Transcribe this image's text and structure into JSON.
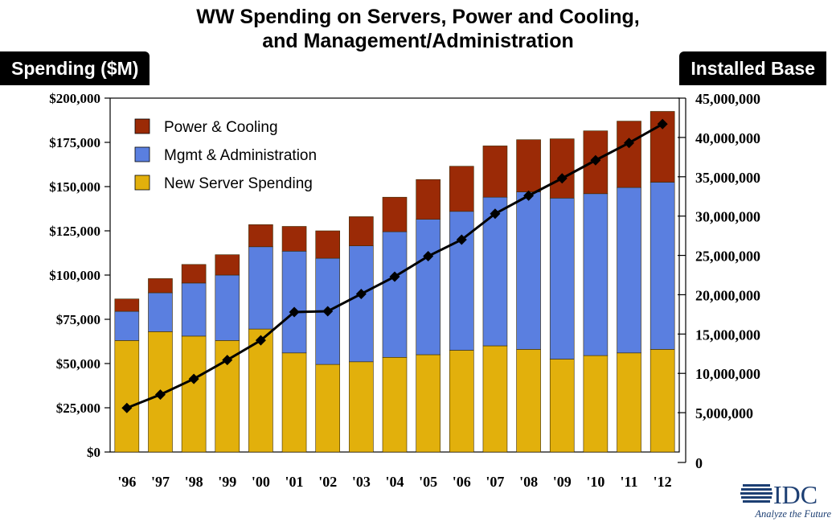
{
  "title_lines": [
    "WW Spending on Servers, Power and Cooling,",
    "and Management/Administration"
  ],
  "y_left_title": "Spending ($M)",
  "y_right_title": "Installed Base",
  "logo": {
    "text": "IDC",
    "tagline": "Analyze the Future"
  },
  "colors": {
    "power_cooling": "#9b2a06",
    "mgmt_admin": "#5a7fe0",
    "new_server": "#e2b00c",
    "installed_base": "#000000"
  },
  "chart_data": {
    "type": "bar",
    "stacked": true,
    "title": "WW Spending on Servers, Power and Cooling, and Management/Administration",
    "categories": [
      "'96",
      "'97",
      "'98",
      "'99",
      "'00",
      "'01",
      "'02",
      "'03",
      "'04",
      "'05",
      "'06",
      "'07",
      "'08",
      "'09",
      "'10",
      "'11",
      "'12"
    ],
    "series": [
      {
        "name": "New Server Spending",
        "color": "#e2b00c",
        "values": [
          63000,
          68000,
          65500,
          63000,
          69500,
          56000,
          49500,
          51000,
          53500,
          55000,
          57500,
          60000,
          58000,
          52500,
          54500,
          56000,
          58000
        ]
      },
      {
        "name": "Mgmt & Administration",
        "color": "#5a7fe0",
        "values": [
          16500,
          22000,
          30000,
          37000,
          46500,
          57500,
          60000,
          65500,
          71000,
          76500,
          78500,
          84000,
          89000,
          91000,
          91500,
          93500,
          94500
        ]
      },
      {
        "name": "Power & Cooling",
        "color": "#9b2a06",
        "values": [
          7000,
          8000,
          10500,
          11500,
          12500,
          14000,
          15500,
          16500,
          19500,
          22500,
          25500,
          29000,
          29500,
          33500,
          35500,
          37500,
          40000
        ]
      }
    ],
    "line_series": {
      "name": "Installed Base",
      "color": "#000000",
      "axis": "right",
      "values": [
        5600000,
        7300000,
        9300000,
        11700000,
        14200000,
        17800000,
        17900000,
        20100000,
        22300000,
        24900000,
        27000000,
        30300000,
        32600000,
        34800000,
        37100000,
        39300000,
        41700000
      ]
    },
    "legend": {
      "position": "top-left",
      "entries": [
        "Power & Cooling",
        "Mgmt & Administration",
        "New Server Spending"
      ]
    },
    "y_left": {
      "label": "Spending ($M)",
      "min": 0,
      "max": 200000,
      "ticks": [
        "$0",
        "$25,000",
        "$50,000",
        "$75,000",
        "$100,000",
        "$125,000",
        "$150,000",
        "$175,000",
        "$200,000"
      ]
    },
    "y_right": {
      "label": "Installed Base",
      "min": 0,
      "max": 45000000,
      "ticks": [
        "0",
        "5,000,000",
        "10,000,000",
        "15,000,000",
        "20,000,000",
        "25,000,000",
        "30,000,000",
        "35,000,000",
        "40,000,000",
        "45,000,000"
      ]
    },
    "grid": false
  }
}
